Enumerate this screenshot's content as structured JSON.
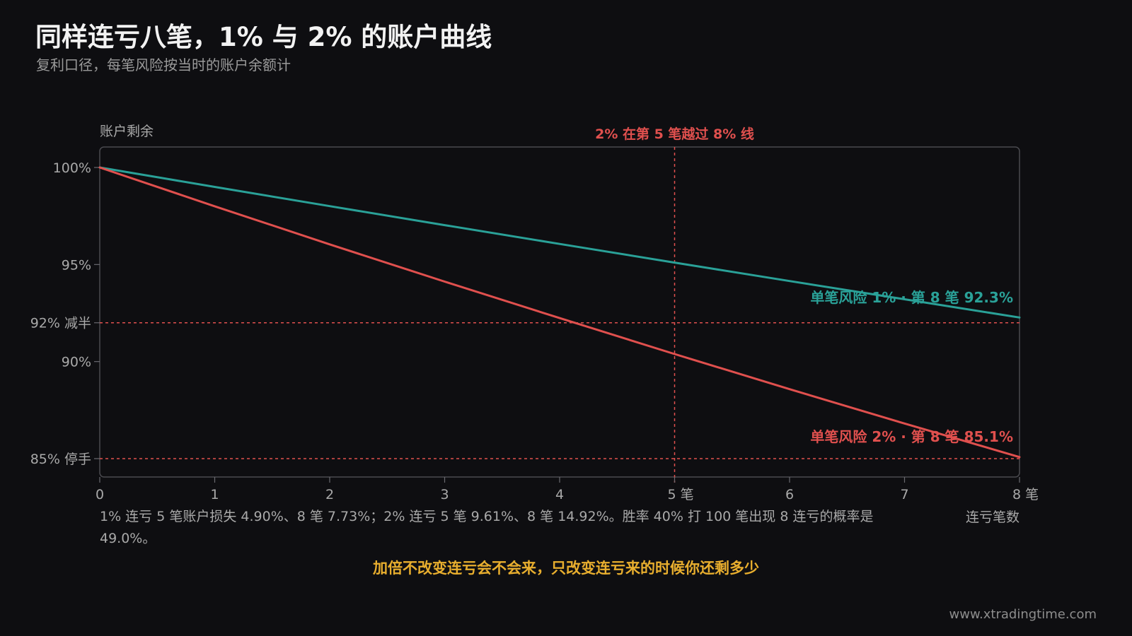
{
  "title": "同样连亏八笔，1% 与 2% 的账户曲线",
  "subtitle": "复利口径，每笔风险按当时的账户余额计",
  "summary": "1% 连亏 5 笔账户损失 4.90%、8 笔 7.73%；2% 连亏 5 笔 9.61%、8 笔 14.92%。胜率 40% 打 100 笔出现 8 连亏的概率是 49.0%。",
  "conclusion": "加倍不改变连亏会不会来，只改变连亏来的时候你还剩多少",
  "site": "www.xtradingtime.com",
  "chart_data": {
    "type": "line",
    "ylabel": "账户剩余",
    "xlabel": "连亏笔数",
    "x": [
      0,
      1,
      2,
      3,
      4,
      5,
      6,
      7,
      8
    ],
    "xlim": [
      0,
      8
    ],
    "ylim": [
      84.0,
      101.0
    ],
    "x_ticks": [
      {
        "value": 0,
        "label": "0"
      },
      {
        "value": 1,
        "label": "1"
      },
      {
        "value": 2,
        "label": "2"
      },
      {
        "value": 3,
        "label": "3"
      },
      {
        "value": 4,
        "label": "4"
      },
      {
        "value": 5,
        "label": "5 笔"
      },
      {
        "value": 6,
        "label": "6"
      },
      {
        "value": 7,
        "label": "7"
      },
      {
        "value": 8,
        "label": "8 笔"
      }
    ],
    "y_ticks": [
      {
        "value": 100,
        "label": "100%"
      },
      {
        "value": 95,
        "label": "95%"
      },
      {
        "value": 92,
        "label": "92% 减半"
      },
      {
        "value": 90,
        "label": "90%"
      },
      {
        "value": 85,
        "label": "85% 停手"
      }
    ],
    "series": [
      {
        "name": "单笔风险 1%",
        "color": "#2aa198",
        "values": [
          100,
          99.0,
          98.01,
          97.03,
          96.06,
          95.1,
          94.15,
          93.21,
          92.27
        ],
        "end_label": "单笔风险 1% · 第 8 笔 92.3%"
      },
      {
        "name": "单笔风险 2%",
        "color": "#e0504e",
        "values": [
          100,
          98.0,
          96.04,
          94.12,
          92.24,
          90.39,
          88.58,
          86.81,
          85.08
        ],
        "end_label": "单笔风险 2% · 第 8 笔 85.1%"
      }
    ],
    "ref_lines": [
      {
        "axis": "y",
        "value": 92,
        "color": "#e0504e"
      },
      {
        "axis": "y",
        "value": 85,
        "color": "#e0504e"
      },
      {
        "axis": "x",
        "value": 5,
        "color": "#e0504e",
        "label": "2% 在第 5 笔越过 8% 线"
      }
    ],
    "colors": {
      "background": "#0e0e11",
      "frame": "#4a4a4f",
      "tick_text": "#a9a9a9",
      "axis_title": "#a9a9a9"
    }
  }
}
